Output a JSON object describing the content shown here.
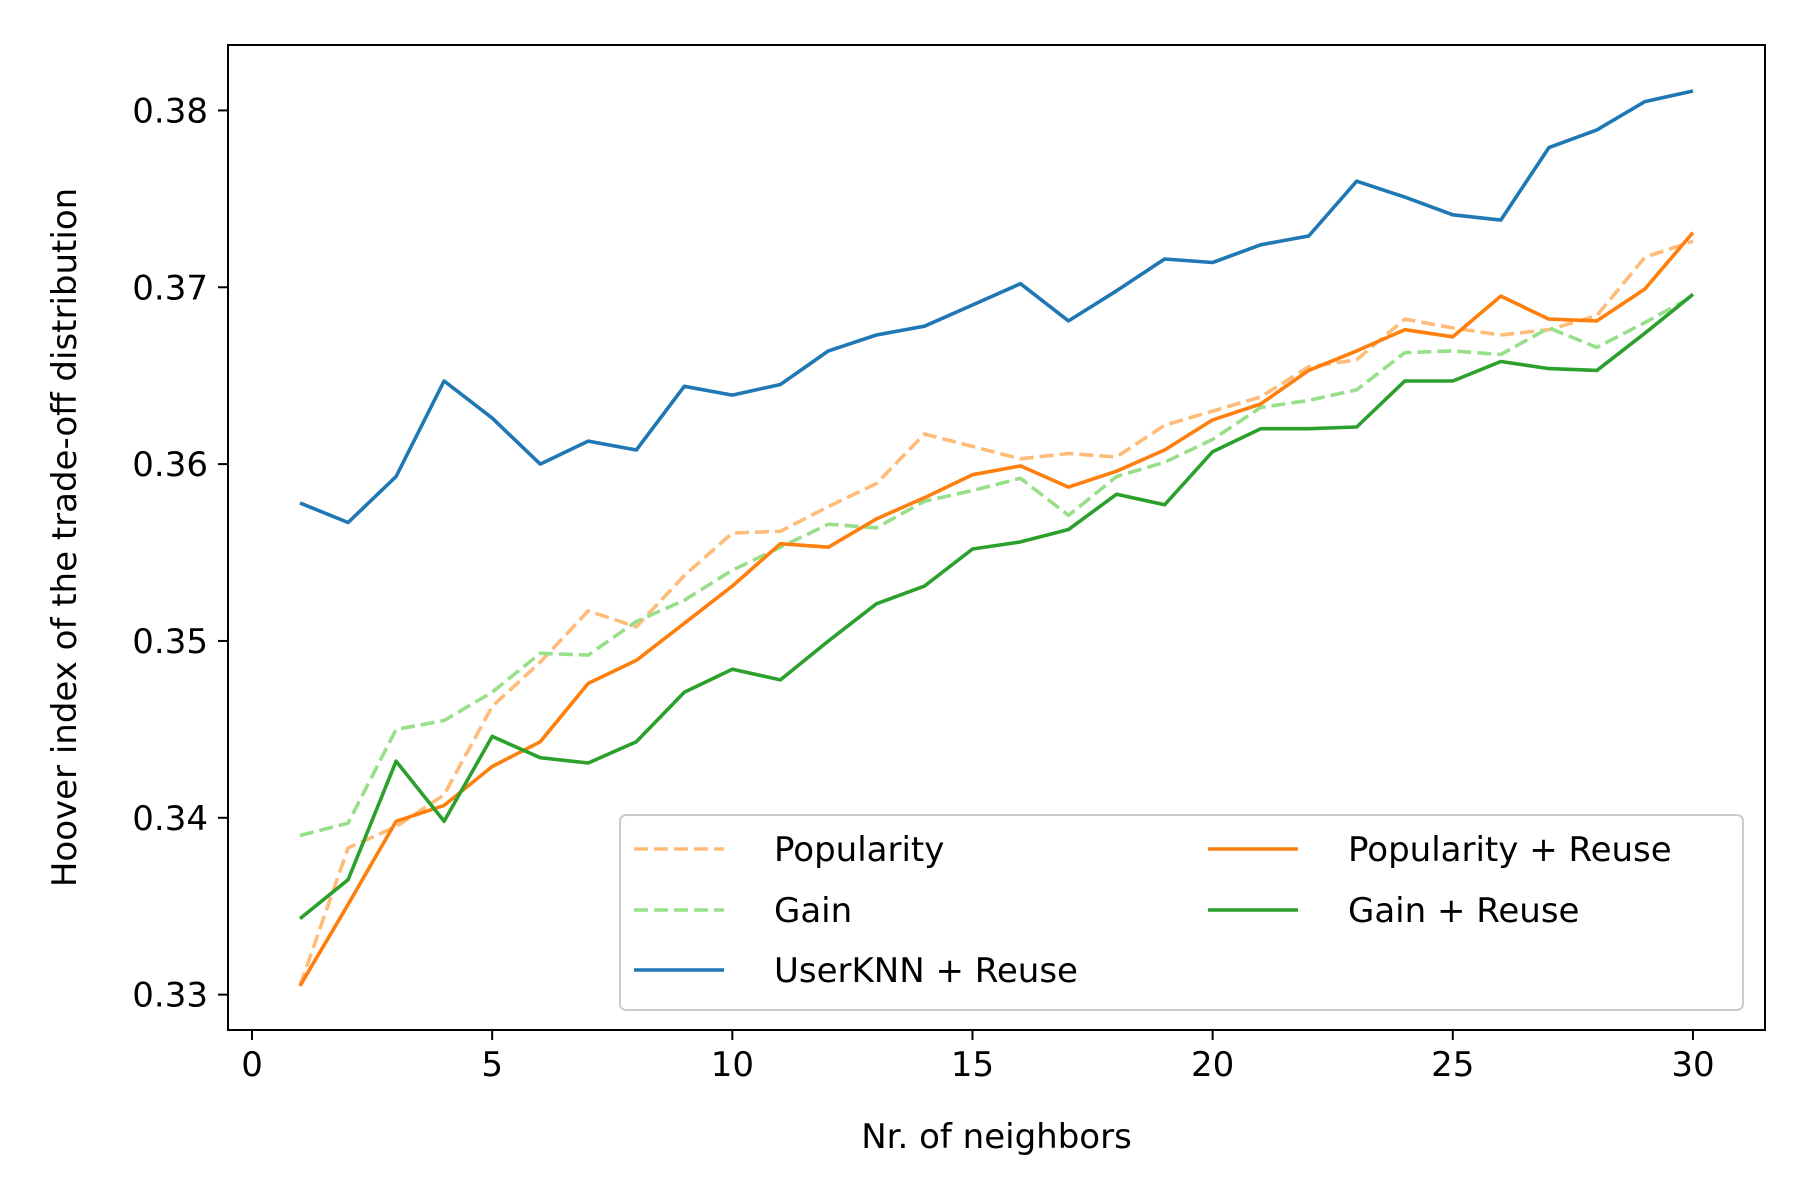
{
  "chart_data": {
    "type": "line",
    "xlabel": "Nr. of neighbors",
    "ylabel": "Hoover index of the trade-off distribution",
    "xlim": [
      -0.5,
      31.5
    ],
    "ylim": [
      0.328,
      0.3837
    ],
    "xticks": [
      0,
      5,
      10,
      15,
      20,
      25,
      30
    ],
    "yticks": [
      0.33,
      0.34,
      0.35,
      0.36,
      0.37,
      0.38
    ],
    "xtick_labels": [
      "0",
      "5",
      "10",
      "15",
      "20",
      "25",
      "30"
    ],
    "ytick_labels": [
      "0.33",
      "0.34",
      "0.35",
      "0.36",
      "0.37",
      "0.38"
    ],
    "grid": false,
    "legend_placement": "lower-right",
    "x": [
      1,
      2,
      3,
      4,
      5,
      6,
      7,
      8,
      9,
      10,
      11,
      12,
      13,
      14,
      15,
      16,
      17,
      18,
      19,
      20,
      21,
      22,
      23,
      24,
      25,
      26,
      27,
      28,
      29,
      30
    ],
    "series": [
      {
        "name": "Popularity",
        "style": "dashed",
        "color": "#ffbb78",
        "values": [
          0.3305,
          0.3383,
          0.3395,
          0.3413,
          0.3463,
          0.3488,
          0.3517,
          0.3508,
          0.3537,
          0.3561,
          0.3562,
          0.3576,
          0.3589,
          0.3617,
          0.361,
          0.3603,
          0.3606,
          0.3604,
          0.3622,
          0.363,
          0.3638,
          0.3655,
          0.3659,
          0.3682,
          0.3677,
          0.3673,
          0.3676,
          0.3684,
          0.3717,
          0.3726
        ]
      },
      {
        "name": "Gain",
        "style": "dashed",
        "color": "#98df8a",
        "values": [
          0.339,
          0.3397,
          0.345,
          0.3455,
          0.3471,
          0.3493,
          0.3492,
          0.3511,
          0.3523,
          0.354,
          0.3553,
          0.3566,
          0.3564,
          0.3579,
          0.3585,
          0.3592,
          0.3571,
          0.3593,
          0.3601,
          0.3614,
          0.3632,
          0.3636,
          0.3642,
          0.3663,
          0.3664,
          0.3662,
          0.3677,
          0.3666,
          0.368,
          0.3695
        ]
      },
      {
        "name": "UserKNN + Reuse",
        "style": "solid",
        "color": "#1f77b4",
        "values": [
          0.3578,
          0.3567,
          0.3593,
          0.3647,
          0.3626,
          0.36,
          0.3613,
          0.3608,
          0.3644,
          0.3639,
          0.3645,
          0.3664,
          0.3673,
          0.3678,
          0.369,
          0.3702,
          0.3681,
          0.3698,
          0.3716,
          0.3714,
          0.3724,
          0.3729,
          0.376,
          0.3751,
          0.3741,
          0.3738,
          0.3779,
          0.3789,
          0.3805,
          0.3811
        ]
      },
      {
        "name": "Popularity + Reuse",
        "style": "solid",
        "color": "#ff7f0e",
        "values": [
          0.3305,
          0.3351,
          0.3398,
          0.3407,
          0.3429,
          0.3443,
          0.3476,
          0.3489,
          0.351,
          0.3531,
          0.3555,
          0.3553,
          0.3569,
          0.3581,
          0.3594,
          0.3599,
          0.3587,
          0.3596,
          0.3608,
          0.3625,
          0.3634,
          0.3653,
          0.3664,
          0.3676,
          0.3672,
          0.3695,
          0.3682,
          0.3681,
          0.3699,
          0.3731
        ]
      },
      {
        "name": "Gain + Reuse",
        "style": "solid",
        "color": "#2ca02c",
        "values": [
          0.3343,
          0.3365,
          0.3432,
          0.3398,
          0.3446,
          0.3434,
          0.3431,
          0.3443,
          0.3471,
          0.3484,
          0.3478,
          0.35,
          0.3521,
          0.3531,
          0.3552,
          0.3556,
          0.3563,
          0.3583,
          0.3577,
          0.3607,
          0.362,
          0.362,
          0.3621,
          0.3647,
          0.3647,
          0.3658,
          0.3654,
          0.3653,
          0.3674,
          0.3696
        ]
      }
    ],
    "legend_order": [
      0,
      3,
      1,
      4,
      2
    ]
  }
}
